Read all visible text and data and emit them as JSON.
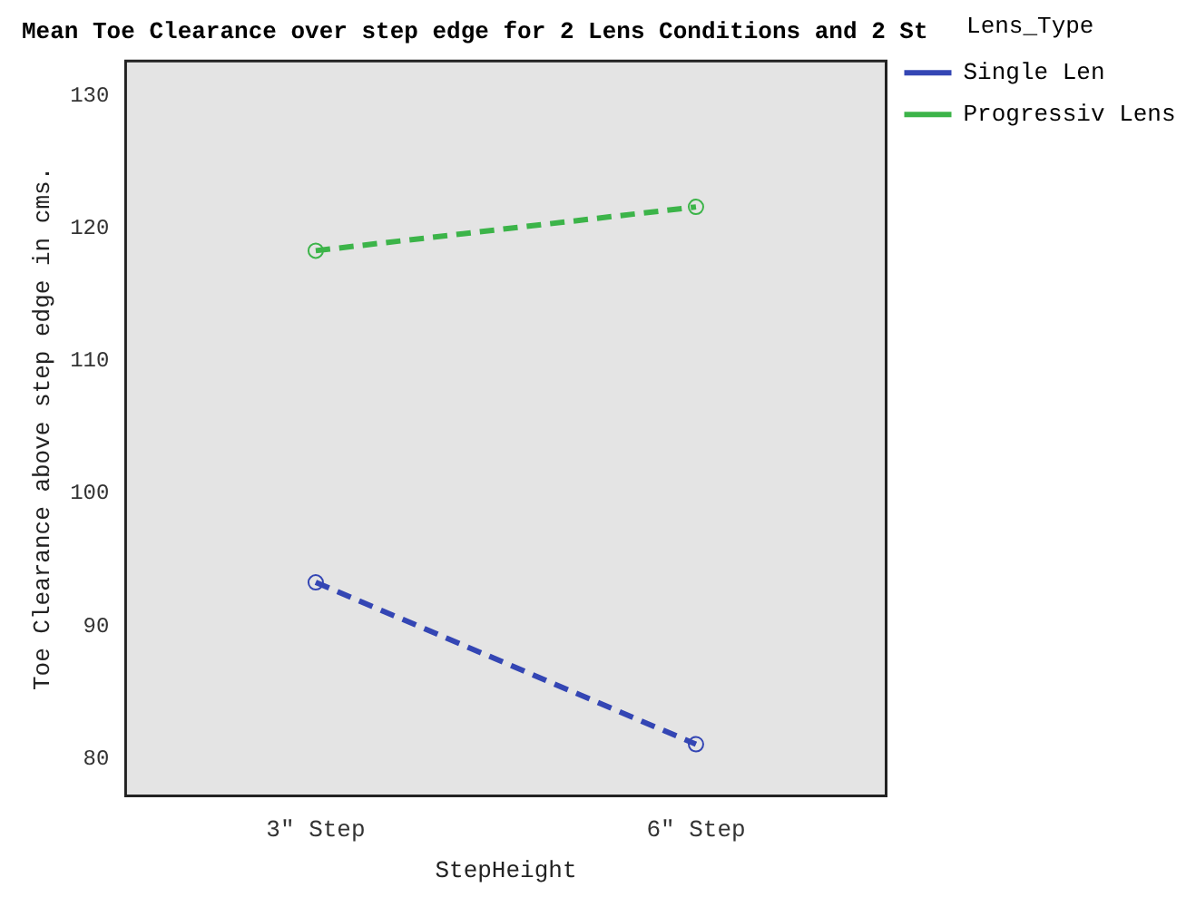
{
  "chart_data": {
    "type": "line",
    "title": "Mean Toe Clearance over step edge for 2 Lens Conditions and 2 St",
    "xlabel": "StepHeight",
    "ylabel": "Toe Clearance above step edge in cms.",
    "legend_title": "Lens_Type",
    "categories": [
      "3\" Step",
      "6\" Step"
    ],
    "series": [
      {
        "name": "Single Len",
        "color": "#3446b4",
        "values": [
          93.3,
          81.1
        ]
      },
      {
        "name": "Progressiv Lens",
        "color": "#3cb449",
        "values": [
          118.3,
          121.6
        ]
      }
    ],
    "ylim": [
      77.2,
      132.6
    ],
    "yticks": [
      80,
      90,
      100,
      110,
      120,
      130
    ],
    "grid": false,
    "legend": "right",
    "marker": "circle",
    "line_style": "dashed"
  }
}
